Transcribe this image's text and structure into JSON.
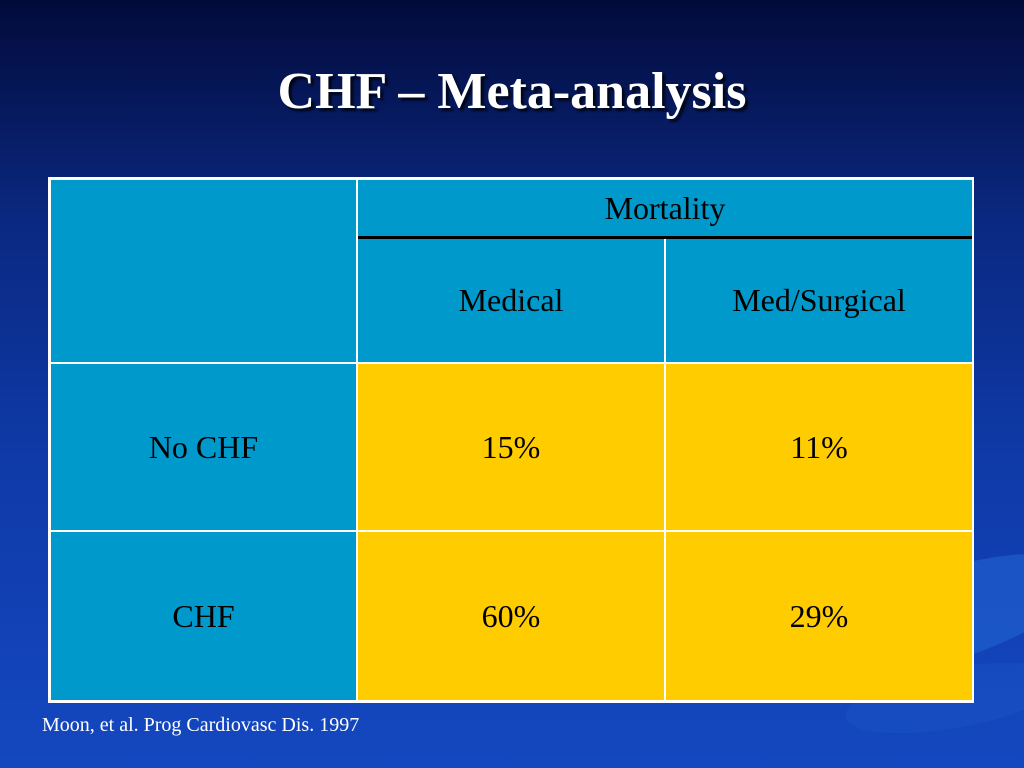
{
  "slide": {
    "title": "CHF – Meta-analysis",
    "citation": "Moon, et al. Prog Cardiovasc Dis. 1997"
  },
  "table": {
    "group_header": "Mortality",
    "columns": [
      "Medical",
      "Med/Surgical"
    ],
    "rows": [
      {
        "label": "No CHF",
        "values": [
          "15%",
          "11%"
        ]
      },
      {
        "label": "CHF",
        "values": [
          "60%",
          "29%"
        ]
      }
    ]
  },
  "colors": {
    "background": "#0f3aa8",
    "header_cell": "#0099cc",
    "value_cell": "#ffcc00",
    "title_text": "#ffffff"
  }
}
